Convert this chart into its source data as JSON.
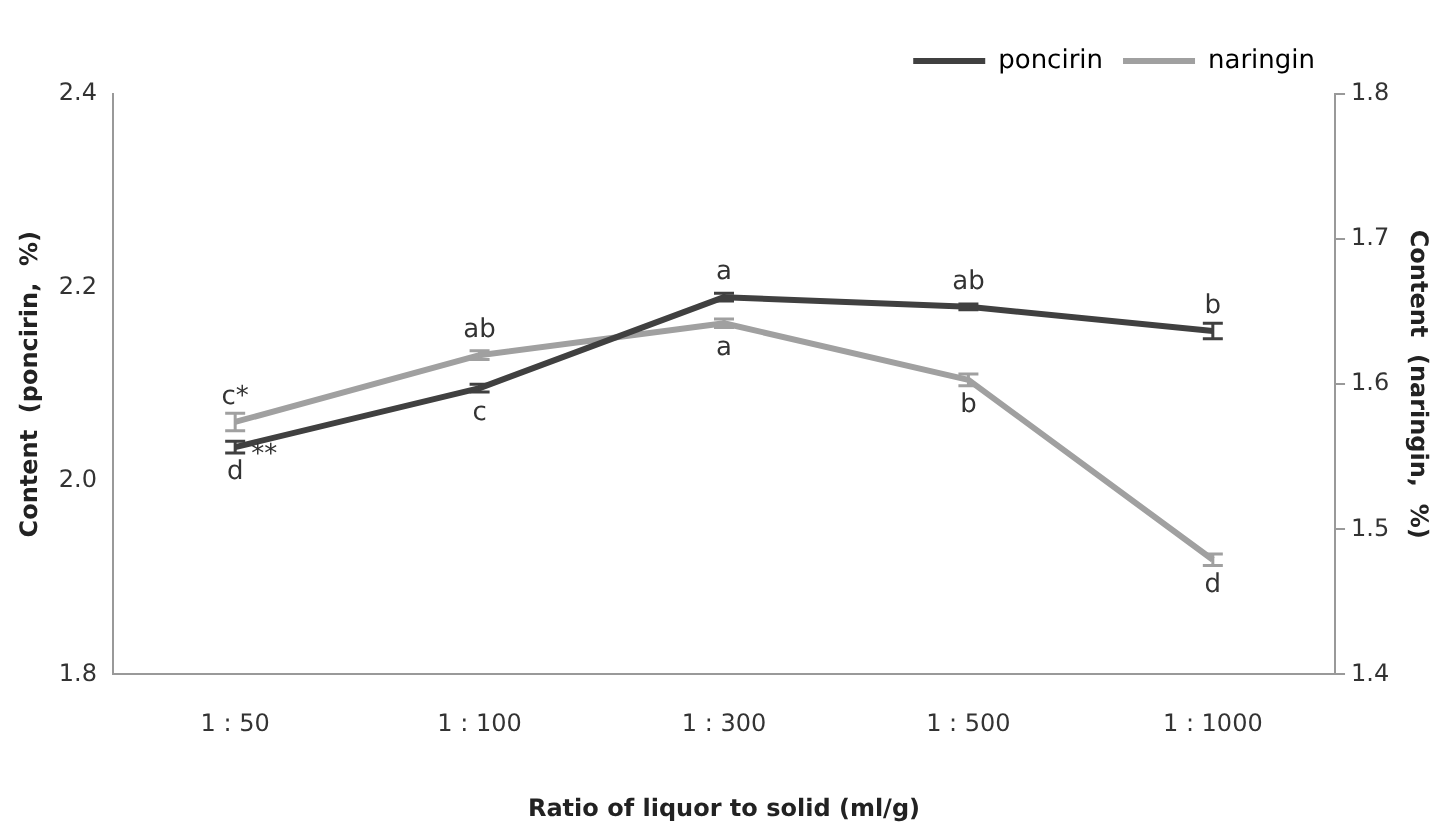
{
  "chart_data": {
    "type": "line",
    "xlabel": "Ratio of liquor to solid (ml/g)",
    "ylabel": "Content  (poncirin,  %)",
    "y2label": "Content  (naringin,  %)",
    "categories": [
      "1 : 50",
      "1 : 100",
      "1 : 300",
      "1 : 500",
      "1 : 1000"
    ],
    "series": [
      {
        "name": "poncirin",
        "color": "#404040",
        "values": [
          2.035,
          2.096,
          2.19,
          2.18,
          2.155
        ],
        "errors": [
          0.006,
          0.004,
          0.004,
          0.003,
          0.008
        ],
        "value_labels": [
          "d",
          "c",
          "a",
          "ab",
          "b"
        ]
      },
      {
        "name": "naringin",
        "color": "#a0a0a0",
        "axis": "y2",
        "values": [
          1.574,
          1.62,
          1.642,
          1.603,
          1.479
        ],
        "errors": [
          0.006,
          0.003,
          0.003,
          0.004,
          0.004
        ],
        "value_labels": [
          "c*",
          "ab",
          "a",
          "b",
          "d"
        ]
      }
    ],
    "ylim": [
      1.8,
      2.4
    ],
    "yticks": [
      1.8,
      {
        "value": 2,
        "label": "2.0"
      },
      2.2,
      2.4
    ],
    "y2lim": [
      1.4,
      1.8
    ],
    "y2ticks": [
      1.4,
      1.5,
      1.6,
      1.7,
      1.8
    ],
    "annotations": [
      {
        "text": "**",
        "x": "1 : 50",
        "y": 2.035
      }
    ],
    "legend": "top right",
    "marker": "none",
    "line_style": "solid",
    "grid": false
  }
}
